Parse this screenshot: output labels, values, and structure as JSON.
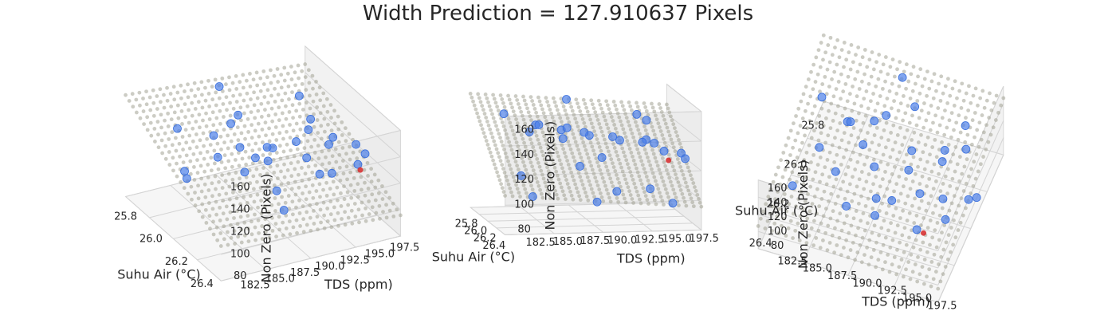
{
  "chart_data": {
    "type": "scatter",
    "title": "Width Prediction = 127.910637 Pixels",
    "subplot_count": 3,
    "xlabel": "Suhu Air (°C)",
    "ylabel": "TDS (ppm)",
    "zlabel": "Non Zero (Pixels)",
    "x_ticks": [
      "26.4",
      "26.2",
      "26.0",
      "25.8"
    ],
    "y_ticks": [
      "182.5",
      "185.0",
      "187.5",
      "190.0",
      "192.5",
      "195.0",
      "197.5"
    ],
    "z_ticks": [
      "80",
      "100",
      "120",
      "140",
      "160"
    ],
    "xlim": [
      25.75,
      26.5
    ],
    "ylim": [
      181,
      199
    ],
    "zlim": [
      75,
      170
    ],
    "series": [
      {
        "kind": "training points",
        "color": "#4c7fe8",
        "points": [
          [
            26.45,
            184.0,
            161
          ],
          [
            26.3,
            187.0,
            152
          ],
          [
            26.35,
            191.5,
            147
          ],
          [
            26.2,
            190.0,
            144
          ],
          [
            26.25,
            195.0,
            141
          ],
          [
            26.05,
            186.0,
            149
          ],
          [
            26.4,
            196.0,
            136
          ],
          [
            26.15,
            193.0,
            138
          ],
          [
            25.95,
            189.0,
            143
          ],
          [
            26.0,
            183.0,
            157
          ],
          [
            25.9,
            196.5,
            146
          ],
          [
            26.1,
            188.0,
            139
          ],
          [
            26.3,
            198.0,
            131
          ],
          [
            25.85,
            191.0,
            136
          ],
          [
            26.2,
            184.5,
            148
          ],
          [
            26.05,
            195.5,
            133
          ],
          [
            25.95,
            197.0,
            129
          ],
          [
            26.35,
            188.5,
            124
          ],
          [
            26.15,
            199.0,
            122
          ],
          [
            26.0,
            192.0,
            120
          ],
          [
            25.9,
            185.0,
            104
          ],
          [
            26.1,
            196.0,
            97
          ],
          [
            26.25,
            190.5,
            92
          ],
          [
            25.85,
            194.0,
            88
          ],
          [
            26.0,
            198.5,
            82
          ],
          [
            25.8,
            186.5,
            84
          ],
          [
            26.4,
            193.5,
            166
          ],
          [
            25.82,
            189.5,
            162
          ]
        ]
      },
      {
        "kind": "prediction point",
        "color": "#d62728",
        "points": [
          [
            26.38,
            196.5,
            127.910637
          ]
        ]
      },
      {
        "kind": "regression plane",
        "color": "#9c9c8c",
        "plane": {
          "z_at_center": 130,
          "dz_dx": -8,
          "dz_dy": -0.7,
          "x_center": 26.125,
          "y_center": 190
        }
      }
    ],
    "grid": true
  }
}
